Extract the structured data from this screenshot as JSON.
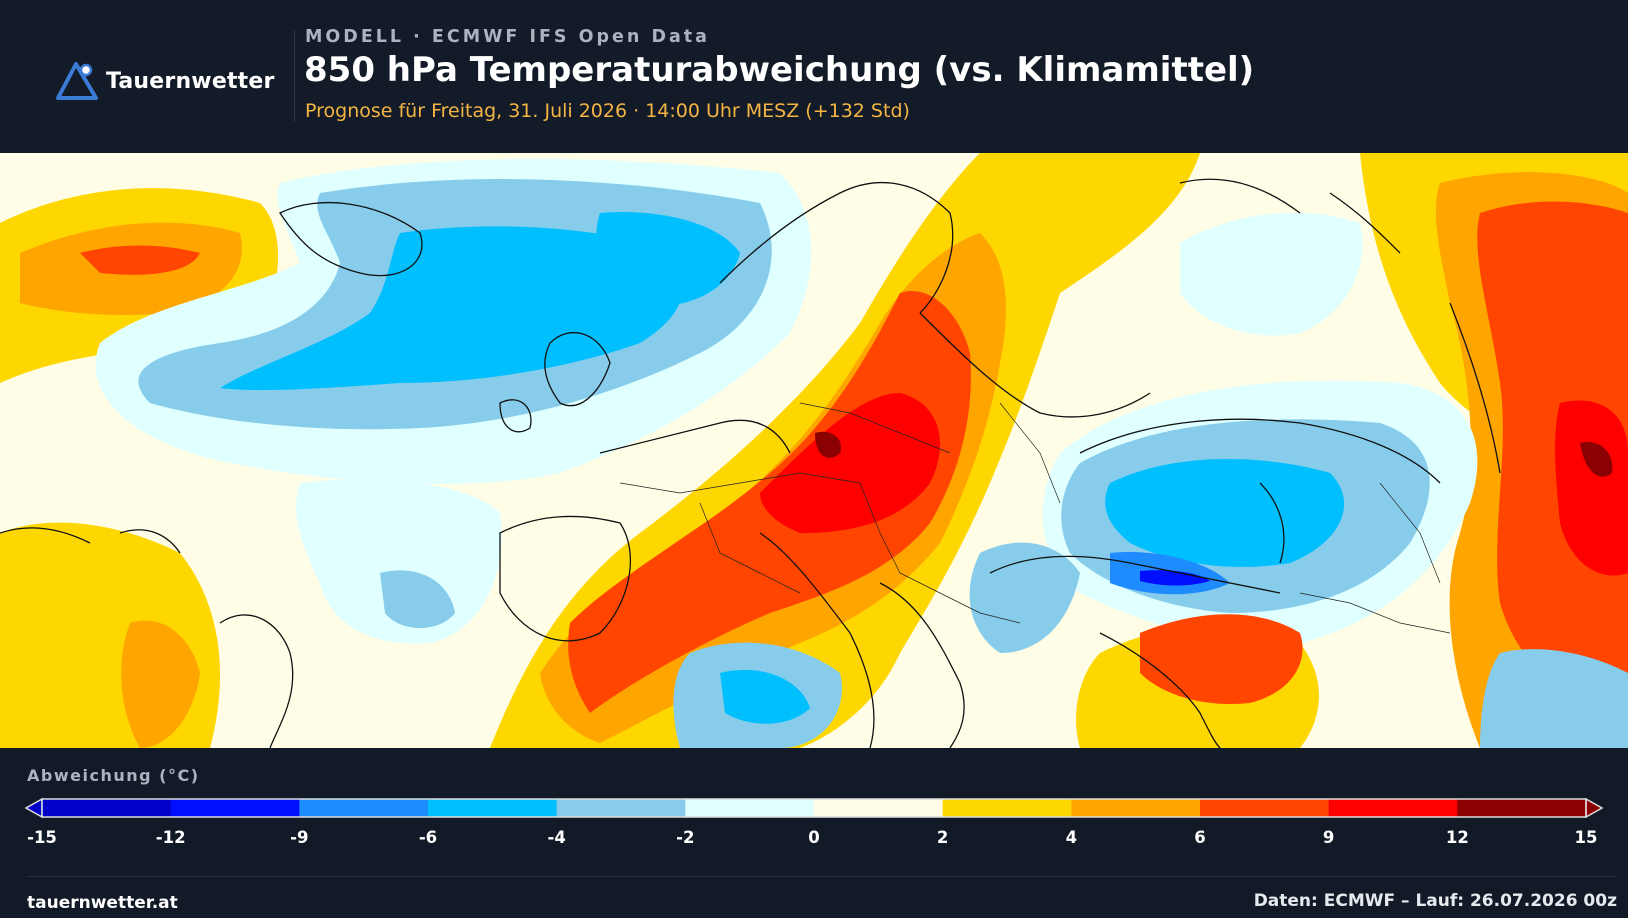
{
  "header": {
    "brand": "Tauernwetter",
    "model_line": "MODELL · ECMWF IFS Open Data",
    "title": "850 hPa Temperaturabweichung (vs. Klimamittel)",
    "subtitle": "Prognose für Freitag, 31. Juli 2026 · 14:00 Uhr MESZ  (+132 Std)"
  },
  "colors": {
    "background": "#111a26",
    "subtitle": "#f4b544",
    "logo": "#3a7bd5"
  },
  "legend": {
    "title": "Abweichung (°C)",
    "ticks": [
      "-15",
      "-12",
      "-9",
      "-6",
      "-4",
      "-2",
      "0",
      "2",
      "4",
      "6",
      "9",
      "12",
      "15"
    ],
    "colors": [
      "#0000c8",
      "#0010ff",
      "#1e8cff",
      "#00bfff",
      "#87cdeb",
      "#e0ffff",
      "#fffde6",
      "#ffd700",
      "#ffa500",
      "#ff4500",
      "#ff0000",
      "#8b0000"
    ]
  },
  "footer": {
    "site": "tauernwetter.at",
    "source": "Daten: ECMWF – Lauf: 26.07.2026 00z"
  }
}
